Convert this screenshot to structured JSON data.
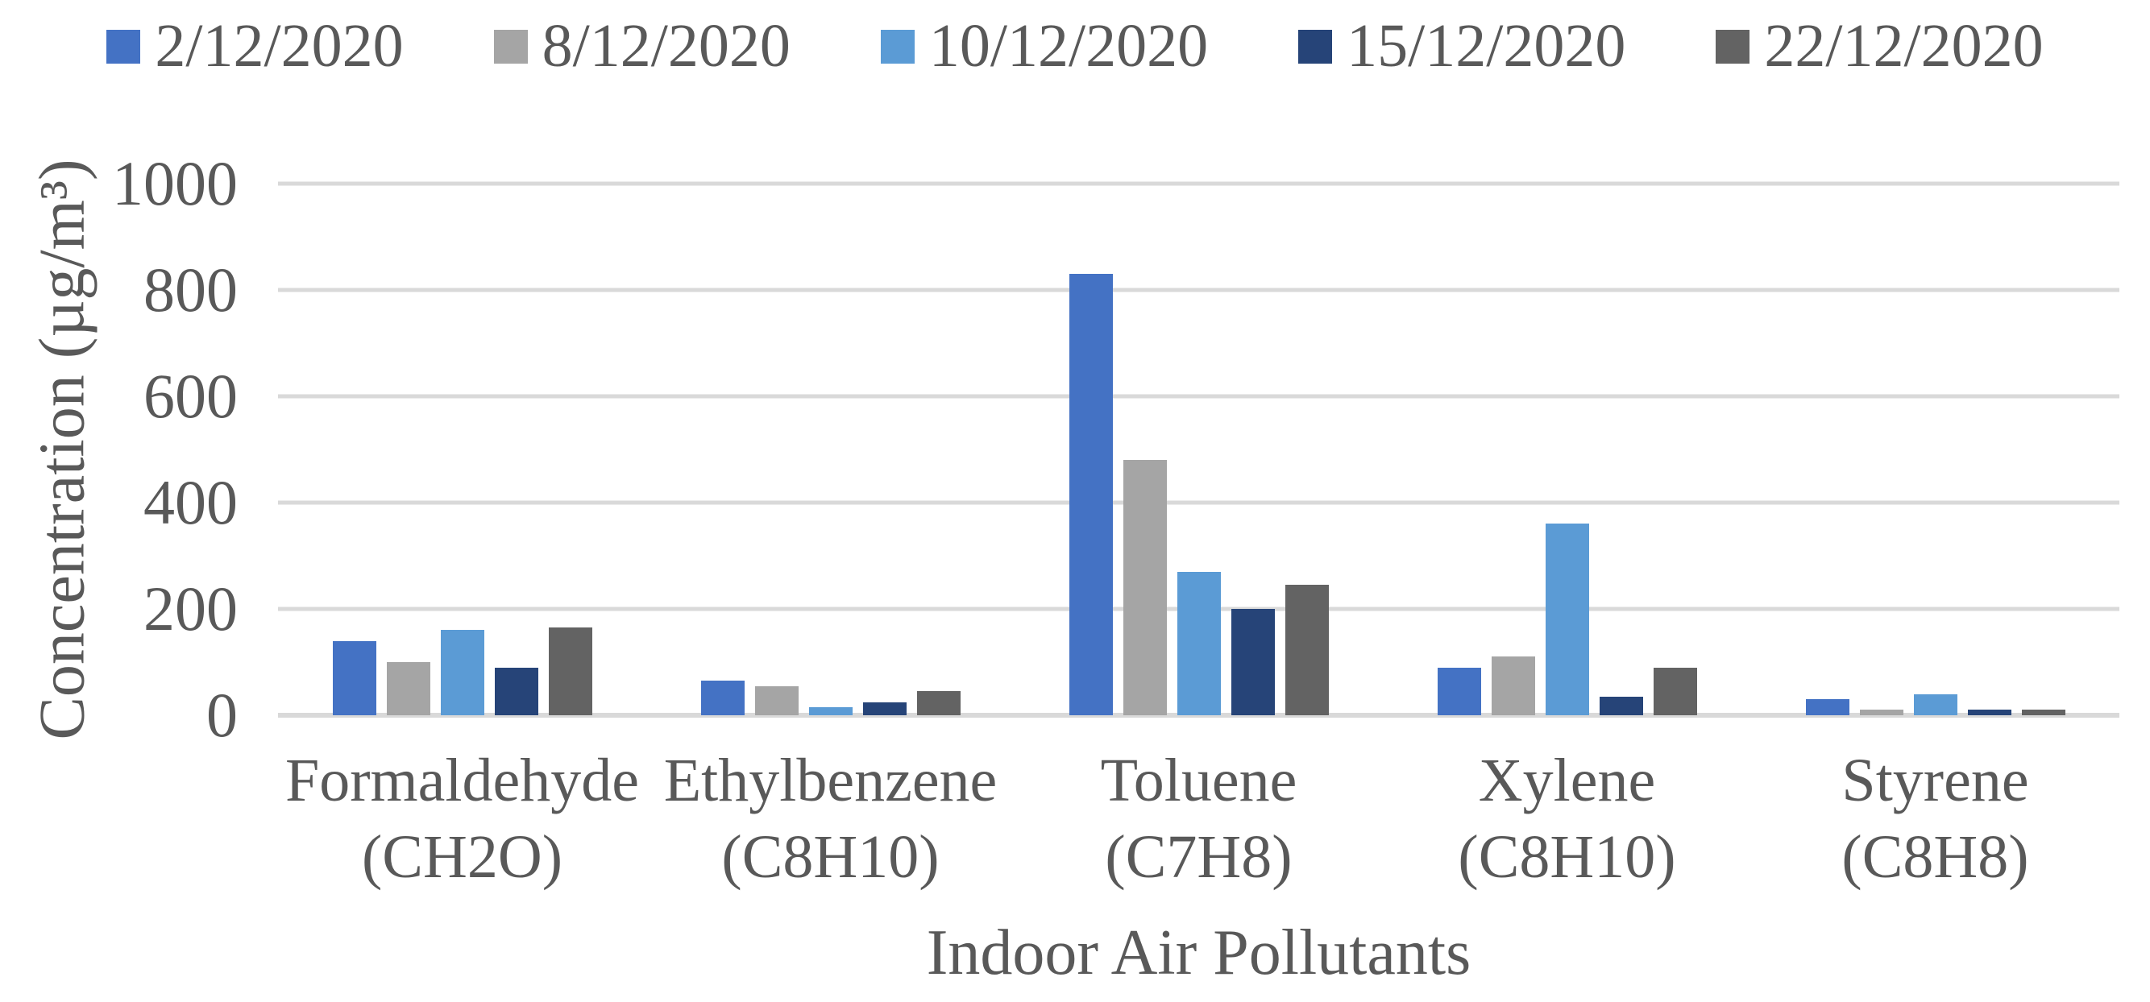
{
  "colors": {
    "text": "#595959",
    "gridline": "#D9D9D9",
    "background": "#ffffff"
  },
  "chart_data": {
    "type": "bar",
    "title": "",
    "xlabel": "Indoor Air Pollutants",
    "ylabel": "Concentration (µg/m³)",
    "ylim": [
      0,
      1000
    ],
    "yticks": [
      0,
      200,
      400,
      600,
      800,
      1000
    ],
    "grid": "horizontal",
    "legend_position": "top",
    "categories": [
      {
        "line1": "Formaldehyde",
        "line2": "(CH2O)"
      },
      {
        "line1": "Ethylbenzene",
        "line2": "(C8H10)"
      },
      {
        "line1": "Toluene",
        "line2": "(C7H8)"
      },
      {
        "line1": "Xylene",
        "line2": "(C8H10)"
      },
      {
        "line1": "Styrene",
        "line2": "(C8H8)"
      }
    ],
    "series": [
      {
        "name": "2/12/2020",
        "color": "#4472C4",
        "values": [
          140,
          65,
          830,
          90,
          30
        ]
      },
      {
        "name": "8/12/2020",
        "color": "#A5A5A5",
        "values": [
          100,
          55,
          480,
          110,
          10
        ]
      },
      {
        "name": "10/12/2020",
        "color": "#5B9BD5",
        "values": [
          160,
          15,
          270,
          360,
          40
        ]
      },
      {
        "name": "15/12/2020",
        "color": "#264478",
        "values": [
          90,
          25,
          200,
          35,
          10
        ]
      },
      {
        "name": "22/12/2020",
        "color": "#636363",
        "values": [
          165,
          45,
          245,
          90,
          10
        ]
      }
    ]
  }
}
